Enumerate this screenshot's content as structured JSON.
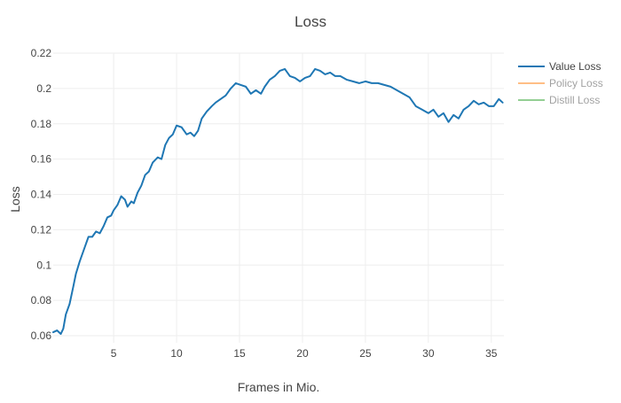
{
  "chart_data": {
    "type": "line",
    "title": "Loss",
    "xlabel": "Frames in Mio.",
    "ylabel": "Loss",
    "xlim": [
      0.2,
      36
    ],
    "ylim": [
      0.056,
      0.22
    ],
    "grid": true,
    "legend_position": "right",
    "x_ticks": [
      5,
      10,
      15,
      20,
      25,
      30,
      35
    ],
    "y_ticks": [
      0.06,
      0.08,
      0.1,
      0.12,
      0.14,
      0.16,
      0.18,
      0.2,
      0.22
    ],
    "x_tick_labels": [
      "5",
      "10",
      "15",
      "20",
      "25",
      "30",
      "35"
    ],
    "y_tick_labels": [
      "0.06",
      "0.08",
      "0.1",
      "0.12",
      "0.14",
      "0.16",
      "0.18",
      "0.2",
      "0.22"
    ],
    "series": [
      {
        "name": "Value Loss",
        "color": "#1f77b4",
        "visible": true,
        "x": [
          0.2,
          0.5,
          0.8,
          1.0,
          1.2,
          1.5,
          1.8,
          2.0,
          2.3,
          2.7,
          3.0,
          3.3,
          3.6,
          3.9,
          4.2,
          4.5,
          4.8,
          5.0,
          5.3,
          5.6,
          5.9,
          6.1,
          6.4,
          6.6,
          6.9,
          7.2,
          7.5,
          7.8,
          8.1,
          8.5,
          8.8,
          9.1,
          9.4,
          9.7,
          10.0,
          10.4,
          10.8,
          11.1,
          11.4,
          11.7,
          12.0,
          12.4,
          12.8,
          13.1,
          13.5,
          13.9,
          14.3,
          14.7,
          15.1,
          15.5,
          15.9,
          16.3,
          16.7,
          17.0,
          17.4,
          17.8,
          18.2,
          18.6,
          19.0,
          19.4,
          19.8,
          20.2,
          20.6,
          21.0,
          21.4,
          21.8,
          22.2,
          22.6,
          23.0,
          23.5,
          24.0,
          24.5,
          25.0,
          25.5,
          26.0,
          26.5,
          27.0,
          27.5,
          28.0,
          28.5,
          29.0,
          29.5,
          30.0,
          30.4,
          30.8,
          31.2,
          31.6,
          32.0,
          32.4,
          32.8,
          33.2,
          33.6,
          34.0,
          34.4,
          34.8,
          35.2,
          35.6,
          35.9
        ],
        "y": [
          0.062,
          0.063,
          0.061,
          0.064,
          0.072,
          0.078,
          0.088,
          0.095,
          0.102,
          0.11,
          0.116,
          0.116,
          0.119,
          0.118,
          0.122,
          0.127,
          0.128,
          0.131,
          0.134,
          0.139,
          0.137,
          0.133,
          0.136,
          0.135,
          0.141,
          0.145,
          0.151,
          0.153,
          0.158,
          0.161,
          0.16,
          0.168,
          0.172,
          0.174,
          0.179,
          0.178,
          0.174,
          0.175,
          0.173,
          0.176,
          0.183,
          0.187,
          0.19,
          0.192,
          0.194,
          0.196,
          0.2,
          0.203,
          0.202,
          0.201,
          0.197,
          0.199,
          0.197,
          0.201,
          0.205,
          0.207,
          0.21,
          0.211,
          0.207,
          0.206,
          0.204,
          0.206,
          0.207,
          0.211,
          0.21,
          0.208,
          0.209,
          0.207,
          0.207,
          0.205,
          0.204,
          0.203,
          0.204,
          0.203,
          0.203,
          0.202,
          0.201,
          0.199,
          0.197,
          0.195,
          0.19,
          0.188,
          0.186,
          0.188,
          0.184,
          0.186,
          0.181,
          0.185,
          0.183,
          0.188,
          0.19,
          0.193,
          0.191,
          0.192,
          0.19,
          0.19,
          0.194,
          0.192
        ]
      },
      {
        "name": "Policy Loss",
        "color": "#ff7f0e",
        "visible": false,
        "x": [],
        "y": []
      },
      {
        "name": "Distill Loss",
        "color": "#2ca02c",
        "visible": false,
        "x": [],
        "y": []
      }
    ]
  }
}
